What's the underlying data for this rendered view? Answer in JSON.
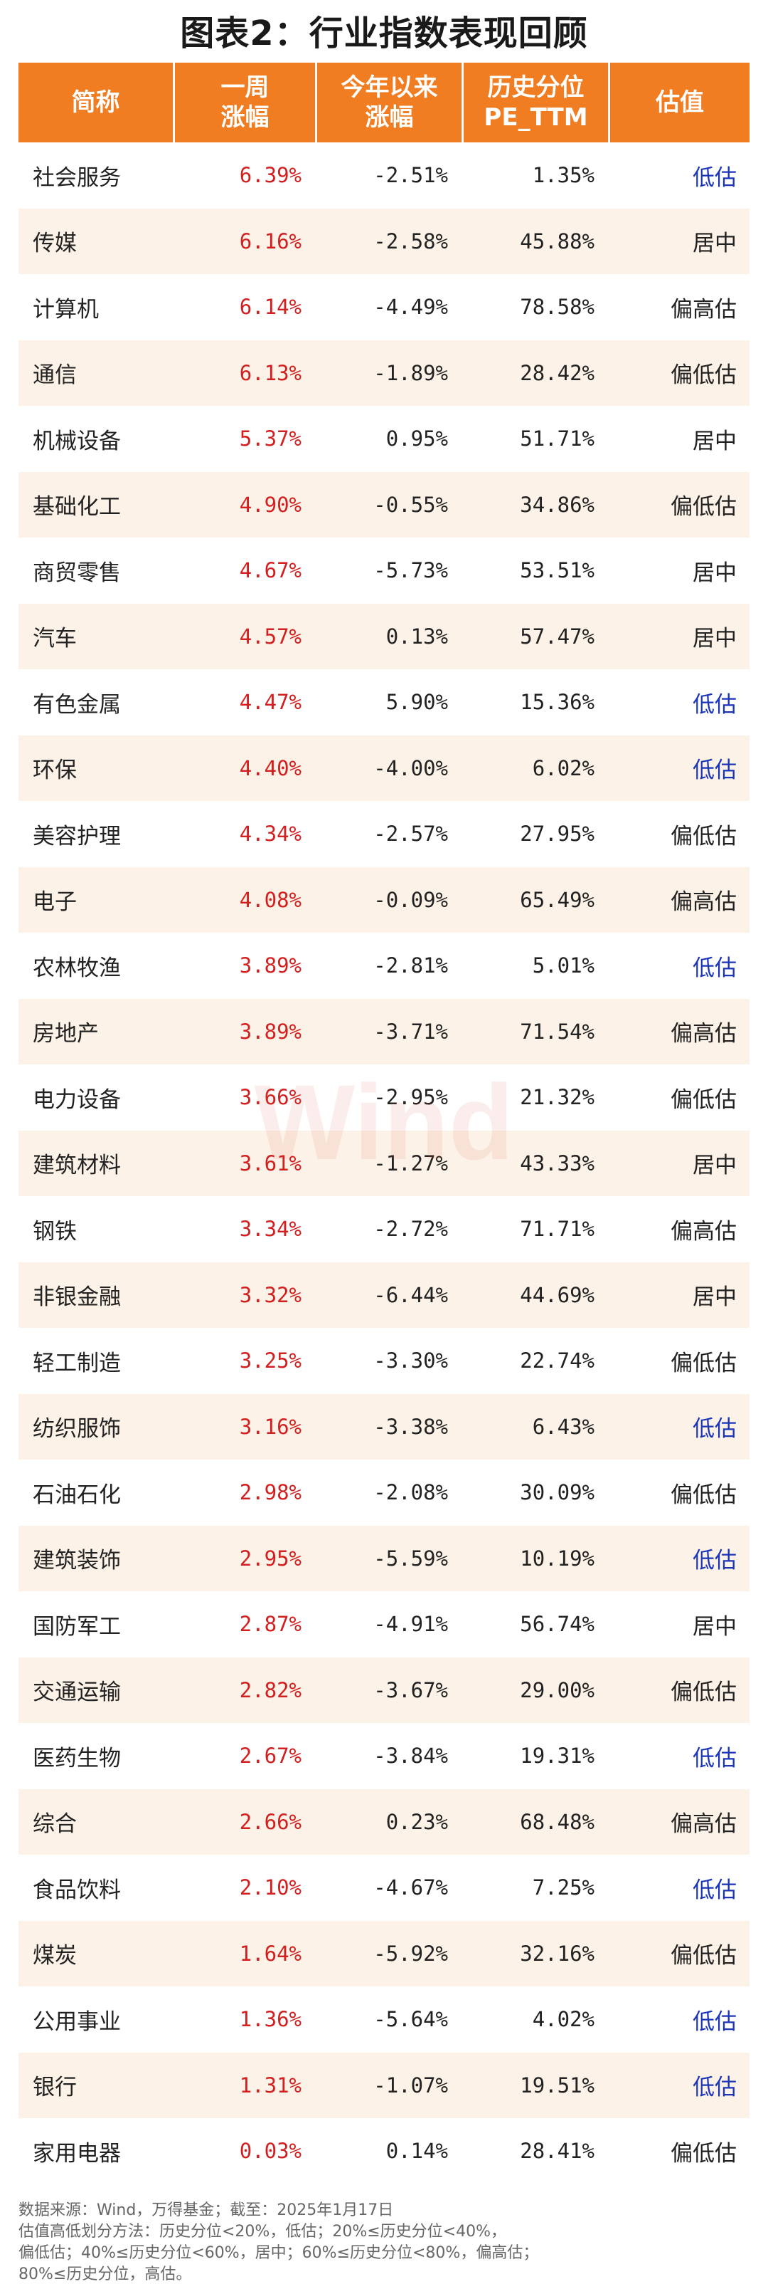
{
  "title": "图表2：行业指数表现回顾",
  "headers": [
    "简称",
    "一周\n涨幅",
    "今年以来\n涨幅",
    "历史分位\nPE_TTM",
    "估值"
  ],
  "watermark": "Wind",
  "colors": {
    "header_bg": "#f07d22",
    "stripe": "#fdf2e7",
    "weekly": "#d21f1f",
    "low_valuation": "#1b35b8"
  },
  "rows": [
    {
      "name": "社会服务",
      "week": "6.39%",
      "ytd": "-2.51%",
      "pe": "1.35%",
      "val": "低估"
    },
    {
      "name": "传媒",
      "week": "6.16%",
      "ytd": "-2.58%",
      "pe": "45.88%",
      "val": "居中"
    },
    {
      "name": "计算机",
      "week": "6.14%",
      "ytd": "-4.49%",
      "pe": "78.58%",
      "val": "偏高估"
    },
    {
      "name": "通信",
      "week": "6.13%",
      "ytd": "-1.89%",
      "pe": "28.42%",
      "val": "偏低估"
    },
    {
      "name": "机械设备",
      "week": "5.37%",
      "ytd": "0.95%",
      "pe": "51.71%",
      "val": "居中"
    },
    {
      "name": "基础化工",
      "week": "4.90%",
      "ytd": "-0.55%",
      "pe": "34.86%",
      "val": "偏低估"
    },
    {
      "name": "商贸零售",
      "week": "4.67%",
      "ytd": "-5.73%",
      "pe": "53.51%",
      "val": "居中"
    },
    {
      "name": "汽车",
      "week": "4.57%",
      "ytd": "0.13%",
      "pe": "57.47%",
      "val": "居中"
    },
    {
      "name": "有色金属",
      "week": "4.47%",
      "ytd": "5.90%",
      "pe": "15.36%",
      "val": "低估"
    },
    {
      "name": "环保",
      "week": "4.40%",
      "ytd": "-4.00%",
      "pe": "6.02%",
      "val": "低估"
    },
    {
      "name": "美容护理",
      "week": "4.34%",
      "ytd": "-2.57%",
      "pe": "27.95%",
      "val": "偏低估"
    },
    {
      "name": "电子",
      "week": "4.08%",
      "ytd": "-0.09%",
      "pe": "65.49%",
      "val": "偏高估"
    },
    {
      "name": "农林牧渔",
      "week": "3.89%",
      "ytd": "-2.81%",
      "pe": "5.01%",
      "val": "低估"
    },
    {
      "name": "房地产",
      "week": "3.89%",
      "ytd": "-3.71%",
      "pe": "71.54%",
      "val": "偏高估"
    },
    {
      "name": "电力设备",
      "week": "3.66%",
      "ytd": "-2.95%",
      "pe": "21.32%",
      "val": "偏低估"
    },
    {
      "name": "建筑材料",
      "week": "3.61%",
      "ytd": "-1.27%",
      "pe": "43.33%",
      "val": "居中"
    },
    {
      "name": "钢铁",
      "week": "3.34%",
      "ytd": "-2.72%",
      "pe": "71.71%",
      "val": "偏高估"
    },
    {
      "name": "非银金融",
      "week": "3.32%",
      "ytd": "-6.44%",
      "pe": "44.69%",
      "val": "居中"
    },
    {
      "name": "轻工制造",
      "week": "3.25%",
      "ytd": "-3.30%",
      "pe": "22.74%",
      "val": "偏低估"
    },
    {
      "name": "纺织服饰",
      "week": "3.16%",
      "ytd": "-3.38%",
      "pe": "6.43%",
      "val": "低估"
    },
    {
      "name": "石油石化",
      "week": "2.98%",
      "ytd": "-2.08%",
      "pe": "30.09%",
      "val": "偏低估"
    },
    {
      "name": "建筑装饰",
      "week": "2.95%",
      "ytd": "-5.59%",
      "pe": "10.19%",
      "val": "低估"
    },
    {
      "name": "国防军工",
      "week": "2.87%",
      "ytd": "-4.91%",
      "pe": "56.74%",
      "val": "居中"
    },
    {
      "name": "交通运输",
      "week": "2.82%",
      "ytd": "-3.67%",
      "pe": "29.00%",
      "val": "偏低估"
    },
    {
      "name": "医药生物",
      "week": "2.67%",
      "ytd": "-3.84%",
      "pe": "19.31%",
      "val": "低估"
    },
    {
      "name": "综合",
      "week": "2.66%",
      "ytd": "0.23%",
      "pe": "68.48%",
      "val": "偏高估"
    },
    {
      "name": "食品饮料",
      "week": "2.10%",
      "ytd": "-4.67%",
      "pe": "7.25%",
      "val": "低估"
    },
    {
      "name": "煤炭",
      "week": "1.64%",
      "ytd": "-5.92%",
      "pe": "32.16%",
      "val": "偏低估"
    },
    {
      "name": "公用事业",
      "week": "1.36%",
      "ytd": "-5.64%",
      "pe": "4.02%",
      "val": "低估"
    },
    {
      "name": "银行",
      "week": "1.31%",
      "ytd": "-1.07%",
      "pe": "19.51%",
      "val": "低估"
    },
    {
      "name": "家用电器",
      "week": "0.03%",
      "ytd": "0.14%",
      "pe": "28.41%",
      "val": "偏低估"
    }
  ],
  "notes": [
    "数据来源：Wind，万得基金；截至：2025年1月17日",
    "估值高低划分方法：历史分位<20%，低估；20%≤历史分位<40%，",
    "偏低估；40%≤历史分位<60%，居中；60%≤历史分位<80%，偏高估；",
    "80%≤历史分位，高估。"
  ]
}
